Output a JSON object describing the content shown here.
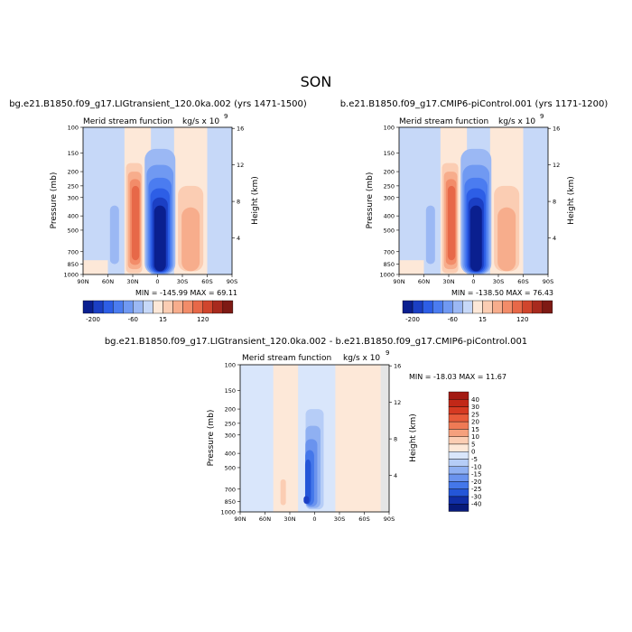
{
  "figure": {
    "title": "SON"
  },
  "chart_data": [
    {
      "type": "heatmap",
      "panel": "left",
      "title": "bg.e21.B1850.f09_g17.LIGtransient_120.0ka.002 (yrs 1471-1500)",
      "subtitle_left": "Merid stream function",
      "subtitle_right": "kg/s x 10",
      "subtitle_exp": "9",
      "ylabel": "Pressure (mb)",
      "ylabel_right": "Height (km)",
      "x_ticks": [
        "90N",
        "60N",
        "30N",
        "0",
        "30S",
        "60S",
        "90S"
      ],
      "y_ticks": [
        "100",
        "150",
        "200",
        "250",
        "300",
        "400",
        "500",
        "700",
        "850",
        "1000"
      ],
      "height_ticks": [
        "16",
        "12",
        "8",
        "4"
      ],
      "stats": "MIN = -145.99   MAX =  69.11",
      "min": -145.99,
      "max": 69.11,
      "colorbar_labels": [
        "-200",
        "-60",
        "15",
        "120"
      ],
      "cells": [
        {
          "name": "sh-deep-cell",
          "lat": 2,
          "p": 520,
          "value": -140
        },
        {
          "name": "north-positive-cell",
          "lat": -25,
          "p": 520,
          "value": 60
        },
        {
          "name": "south-positive-cell",
          "lat": 36,
          "p": 600,
          "value": 40
        },
        {
          "name": "north-ferrel-cell",
          "lat": -48,
          "p": 560,
          "value": -20
        }
      ]
    },
    {
      "type": "heatmap",
      "panel": "right",
      "title": "b.e21.B1850.f09_g17.CMIP6-piControl.001 (yrs 1171-1200)",
      "subtitle_left": "Merid stream function",
      "subtitle_right": "kg/s x 10",
      "subtitle_exp": "9",
      "ylabel": "Pressure (mb)",
      "ylabel_right": "Height (km)",
      "x_ticks": [
        "90N",
        "60N",
        "30N",
        "0",
        "30S",
        "60S",
        "90S"
      ],
      "y_ticks": [
        "100",
        "150",
        "200",
        "250",
        "300",
        "400",
        "500",
        "700",
        "850",
        "1000"
      ],
      "height_ticks": [
        "16",
        "12",
        "8",
        "4"
      ],
      "stats": "MIN = -138.50   MAX =  76.43",
      "min": -138.5,
      "max": 76.43,
      "colorbar_labels": [
        "-200",
        "-60",
        "15",
        "120"
      ],
      "cells": [
        {
          "name": "sh-deep-cell",
          "lat": 2,
          "p": 520,
          "value": -135
        },
        {
          "name": "north-positive-cell",
          "lat": -25,
          "p": 520,
          "value": 70
        },
        {
          "name": "south-positive-cell",
          "lat": 36,
          "p": 600,
          "value": 45
        },
        {
          "name": "north-ferrel-cell",
          "lat": -48,
          "p": 560,
          "value": -20
        }
      ]
    },
    {
      "type": "heatmap",
      "panel": "difference",
      "title": "bg.e21.B1850.f09_g17.LIGtransient_120.0ka.002 - b.e21.B1850.f09_g17.CMIP6-piControl.001",
      "subtitle_left": "Merid stream function",
      "subtitle_right": "kg/s x 10",
      "subtitle_exp": "9",
      "ylabel": "Pressure (mb)",
      "ylabel_right": "Height (km)",
      "x_ticks": [
        "90N",
        "60N",
        "30N",
        "0",
        "30S",
        "60S",
        "90S"
      ],
      "y_ticks": [
        "100",
        "150",
        "200",
        "250",
        "300",
        "400",
        "500",
        "700",
        "850",
        "1000"
      ],
      "height_ticks": [
        "16",
        "12",
        "8",
        "4"
      ],
      "stats": "MIN = -18.03   MAX =  11.67",
      "min": -18.03,
      "max": 11.67,
      "colorbar_labels": [
        "40",
        "30",
        "25",
        "20",
        "15",
        "10",
        "5",
        "0",
        "-5",
        "-10",
        "-15",
        "-20",
        "-25",
        "-30",
        "-40"
      ],
      "cells": [
        {
          "name": "equatorial-negative",
          "lat": 0,
          "p": 520,
          "value": -15
        },
        {
          "name": "northern-positive",
          "lat": -35,
          "p": 750,
          "value": 8
        },
        {
          "name": "northern-negative-core",
          "lat": -10,
          "p": 820,
          "value": -18
        }
      ]
    }
  ],
  "colors": {
    "main_scale": [
      "#0a1f8f",
      "#1b3fc4",
      "#2d5ee6",
      "#4b7cf0",
      "#7099f2",
      "#9bb8f4",
      "#c6d8f8",
      "#fde8d8",
      "#fbcdb3",
      "#f7ad8c",
      "#f28c69",
      "#e76848",
      "#d0452d",
      "#a82a1e",
      "#7e1a14"
    ],
    "diff_scale": [
      "#a31a12",
      "#c22818",
      "#d63a22",
      "#e85b3a",
      "#ef7a55",
      "#f5a07d",
      "#fbcdb3",
      "#fde8d8",
      "#d9e6fb",
      "#b6cdf7",
      "#8fb0f2",
      "#6a93ee",
      "#4477ea",
      "#2456d8",
      "#102ea6",
      "#071a7a"
    ]
  }
}
